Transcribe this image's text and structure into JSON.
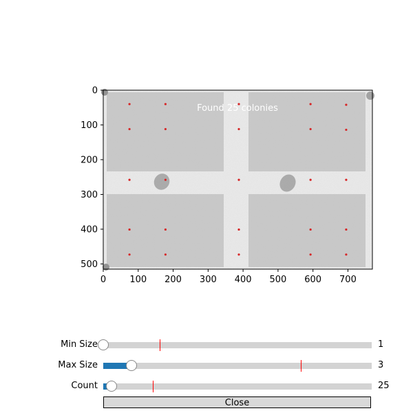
{
  "figure": {
    "annotation": "Found 25 colonies",
    "colors": {
      "marker": "#d62728",
      "annotation_text": "#ffffff",
      "image_background": "#c8c8c8",
      "image_divider": "#e4e4e4"
    }
  },
  "chart_data": {
    "type": "scatter",
    "title": "",
    "xlabel": "",
    "ylabel": "",
    "xlim": [
      0,
      770
    ],
    "ylim": [
      515,
      0
    ],
    "y_inverted": true,
    "grid": false,
    "xticks": [
      0,
      100,
      200,
      300,
      400,
      500,
      600,
      700
    ],
    "yticks": [
      0,
      100,
      200,
      300,
      400,
      500
    ],
    "annotation": "Found 25 colonies",
    "series": [
      {
        "points": [
          [
            75,
            40
          ],
          [
            178,
            40
          ],
          [
            388,
            40
          ],
          [
            593,
            40
          ],
          [
            695,
            42
          ],
          [
            75,
            112
          ],
          [
            178,
            112
          ],
          [
            388,
            112
          ],
          [
            593,
            112
          ],
          [
            695,
            114
          ],
          [
            75,
            258
          ],
          [
            178,
            258
          ],
          [
            388,
            258
          ],
          [
            593,
            258
          ],
          [
            695,
            258
          ],
          [
            75,
            401
          ],
          [
            178,
            401
          ],
          [
            388,
            401
          ],
          [
            593,
            401
          ],
          [
            695,
            401
          ],
          [
            75,
            473
          ],
          [
            178,
            473
          ],
          [
            388,
            473
          ],
          [
            593,
            473
          ],
          [
            695,
            473
          ]
        ]
      }
    ]
  },
  "sliders": [
    {
      "label": "Min Size",
      "value": "1",
      "fraction": 0.0,
      "init_fraction": 0.21
    },
    {
      "label": "Max Size",
      "value": "3",
      "fraction": 0.105,
      "init_fraction": 0.737
    },
    {
      "label": "Count",
      "value": "25",
      "fraction": 0.03,
      "init_fraction": 0.185
    }
  ],
  "close_button": {
    "label": "Close"
  }
}
